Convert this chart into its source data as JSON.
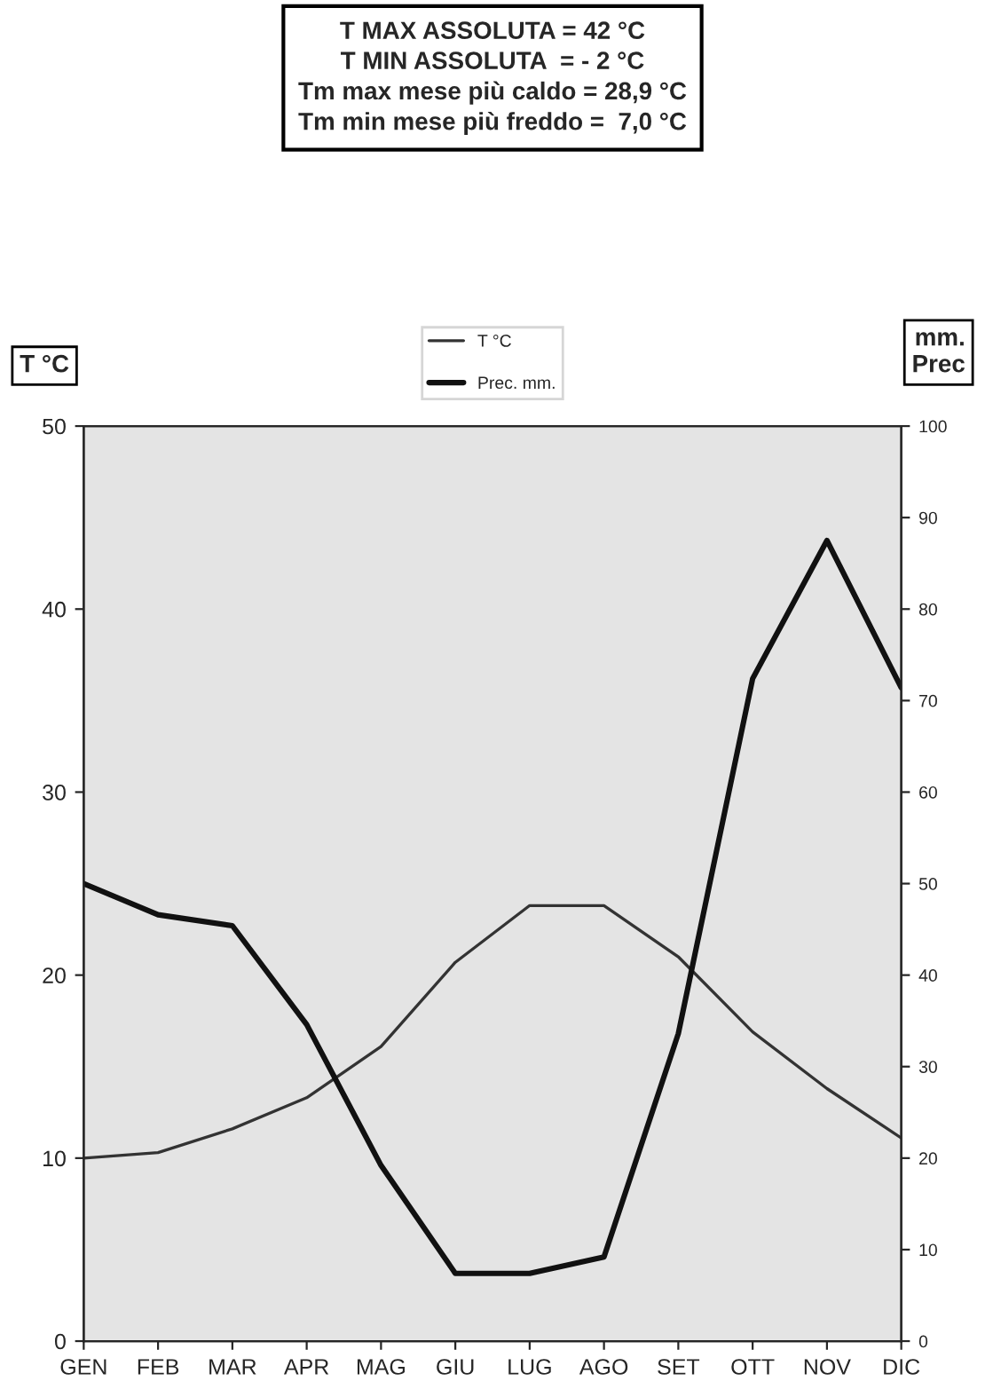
{
  "chart_data": {
    "type": "line",
    "title": "T MAX ASSOLUTA = 42 °C\nT MIN ASSOLUTA  = - 2 °C\nTm max mese più caldo = 28,9 °C\nTm min mese più freddo =  7,0 °C",
    "ylabel": "T °C",
    "y2label": "mm.\nPrec",
    "categories": [
      "GEN",
      "FEB",
      "MAR",
      "APR",
      "MAG",
      "GIU",
      "LUG",
      "AGO",
      "SET",
      "OTT",
      "NOV",
      "DIC"
    ],
    "series": [
      {
        "name": "T °C",
        "color": "#333333",
        "values": [
          10.0,
          10.3,
          11.6,
          13.3,
          16.1,
          20.7,
          23.8,
          23.8,
          21.0,
          16.9,
          13.8,
          11.1
        ]
      },
      {
        "name": "Prec. mm.",
        "color": "#111111",
        "axis": "y2",
        "values": [
          50,
          46.6,
          45.4,
          34.6,
          19.2,
          7.4,
          7.4,
          9.2,
          33.6,
          72.4,
          87.5,
          71.4
        ]
      }
    ],
    "ylim": [
      0,
      50
    ],
    "yticks": [
      0,
      10,
      20,
      30,
      40,
      50
    ],
    "y2lim": [
      0,
      100
    ],
    "y2ticks": [
      0,
      10,
      20,
      30,
      40,
      50,
      60,
      70,
      80,
      90,
      100
    ],
    "grid": false,
    "legend": "top",
    "line_style": "solid",
    "marker": "none"
  }
}
